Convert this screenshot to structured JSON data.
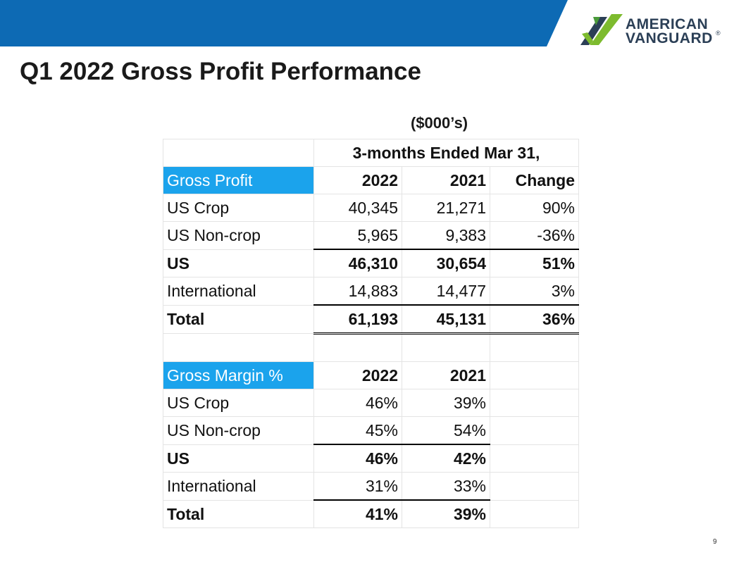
{
  "header": {
    "logo_line1": "AMERICAN",
    "logo_line2": "VANGUARD",
    "logo_mark": "®"
  },
  "title": "Q1 2022 Gross Profit Performance",
  "subtitle": "($000’s)",
  "page_number": "9",
  "table": {
    "period_header": "3-months Ended Mar 31,",
    "gross_profit": {
      "section_label": "Gross Profit",
      "columns": [
        "2022",
        "2021",
        "Change"
      ],
      "rows": [
        {
          "label": "US Crop",
          "values": [
            "40,345",
            "21,271",
            "90%"
          ]
        },
        {
          "label": "US Non-crop",
          "values": [
            "5,965",
            "9,383",
            "-36%"
          ]
        },
        {
          "label": "US",
          "values": [
            "46,310",
            "30,654",
            "51%"
          ]
        },
        {
          "label": "International",
          "values": [
            "14,883",
            "14,477",
            "3%"
          ]
        },
        {
          "label": "Total",
          "values": [
            "61,193",
            "45,131",
            "36%"
          ]
        }
      ]
    },
    "gross_margin": {
      "section_label": "Gross Margin %",
      "columns": [
        "2022",
        "2021"
      ],
      "rows": [
        {
          "label": "US Crop",
          "values": [
            "46%",
            "39%"
          ]
        },
        {
          "label": "US Non-crop",
          "values": [
            "45%",
            "54%"
          ]
        },
        {
          "label": "US",
          "values": [
            "46%",
            "42%"
          ]
        },
        {
          "label": "International",
          "values": [
            "31%",
            "33%"
          ]
        },
        {
          "label": "Total",
          "values": [
            "41%",
            "39%"
          ]
        }
      ]
    }
  },
  "colors": {
    "banner_blue": "#0d6ab4",
    "section_blue": "#1ba3ec",
    "logo_green": "#7dbb2e",
    "logo_navy": "#2b3f56"
  }
}
